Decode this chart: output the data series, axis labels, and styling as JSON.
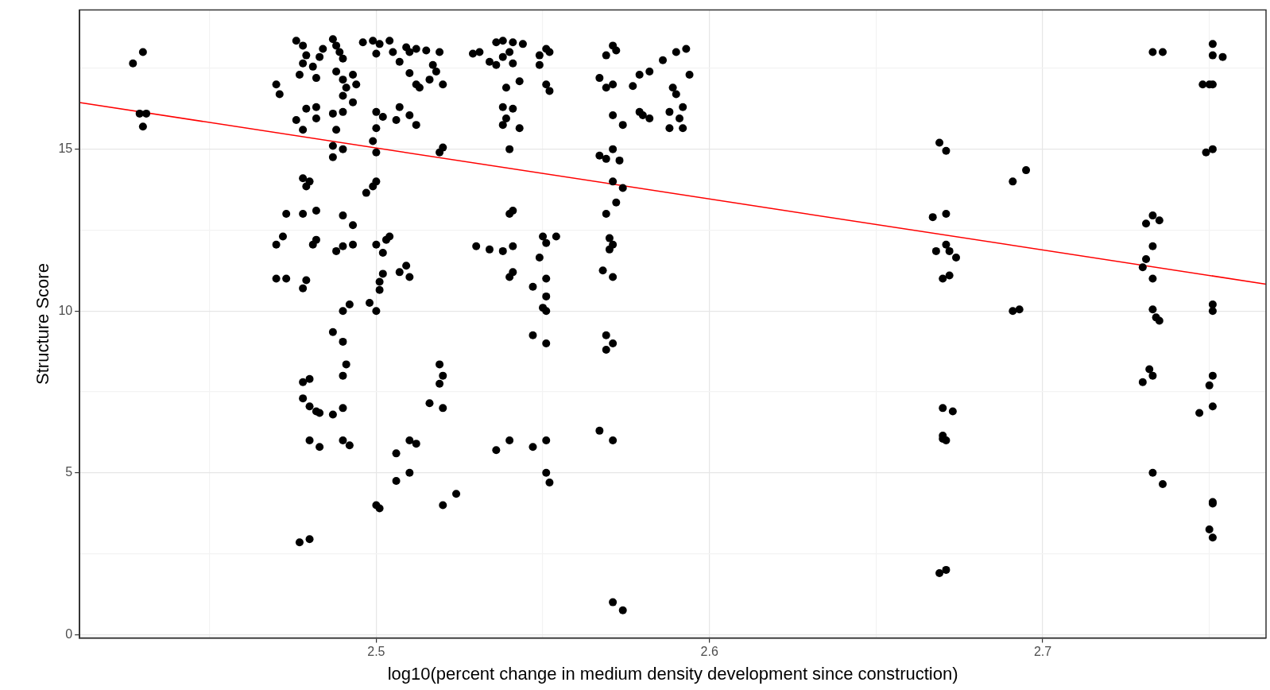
{
  "chart_data": {
    "type": "scatter",
    "xlabel": "log10(percent change in medium density development since construction)",
    "ylabel": "Structure Score",
    "xlim": [
      2.411,
      2.767
    ],
    "ylim": [
      -0.1,
      19.3
    ],
    "xticks": [
      {
        "value": 2.45,
        "label": null
      },
      2.5,
      {
        "value": 2.55,
        "label": null
      },
      2.6,
      {
        "value": 2.65,
        "label": null
      },
      2.7,
      {
        "value": 2.75,
        "label": null
      }
    ],
    "yticks": [
      0,
      {
        "value": 2.5,
        "label": null
      },
      5,
      {
        "value": 7.5,
        "label": null
      },
      10,
      {
        "value": 12.5,
        "label": null
      },
      15,
      {
        "value": 17.5,
        "label": null
      }
    ],
    "grid": true,
    "legend": false,
    "series": [
      {
        "color": "#000000",
        "marker": "circle",
        "x": [
          2.427,
          2.43,
          2.429,
          2.431,
          2.43,
          2.47,
          2.471,
          2.476,
          2.478,
          2.479,
          2.478,
          2.477,
          2.481,
          2.482,
          2.483,
          2.484,
          2.487,
          2.488,
          2.489,
          2.49,
          2.488,
          2.49,
          2.491,
          2.493,
          2.494,
          2.49,
          2.493,
          2.476,
          2.479,
          2.482,
          2.478,
          2.482,
          2.487,
          2.488,
          2.49,
          2.487,
          2.487,
          2.49,
          2.478,
          2.48,
          2.479,
          2.473,
          2.478,
          2.482,
          2.49,
          2.493,
          2.47,
          2.472,
          2.481,
          2.482,
          2.488,
          2.49,
          2.493,
          2.47,
          2.473,
          2.479,
          2.478,
          2.49,
          2.492,
          2.487,
          2.49,
          2.491,
          2.49,
          2.478,
          2.48,
          2.478,
          2.48,
          2.482,
          2.483,
          2.487,
          2.49,
          2.48,
          2.483,
          2.49,
          2.492,
          2.477,
          2.48,
          2.496,
          2.499,
          2.501,
          2.504,
          2.5,
          2.505,
          2.509,
          2.51,
          2.512,
          2.507,
          2.51,
          2.512,
          2.513,
          2.516,
          2.517,
          2.519,
          2.518,
          2.52,
          2.515,
          2.5,
          2.502,
          2.506,
          2.51,
          2.507,
          2.512,
          2.5,
          2.499,
          2.5,
          2.519,
          2.52,
          2.5,
          2.499,
          2.497,
          2.5,
          2.502,
          2.504,
          2.503,
          2.502,
          2.501,
          2.501,
          2.509,
          2.507,
          2.51,
          2.498,
          2.5,
          2.5,
          2.501,
          2.506,
          2.51,
          2.512,
          2.506,
          2.51,
          2.519,
          2.52,
          2.519,
          2.516,
          2.52,
          2.52,
          2.524,
          2.529,
          2.531,
          2.534,
          2.536,
          2.538,
          2.541,
          2.544,
          2.54,
          2.538,
          2.536,
          2.541,
          2.543,
          2.539,
          2.538,
          2.541,
          2.539,
          2.538,
          2.543,
          2.54,
          2.541,
          2.54,
          2.53,
          2.534,
          2.538,
          2.541,
          2.541,
          2.54,
          2.536,
          2.54,
          2.549,
          2.551,
          2.552,
          2.549,
          2.551,
          2.552,
          2.55,
          2.551,
          2.554,
          2.549,
          2.551,
          2.547,
          2.551,
          2.55,
          2.551,
          2.547,
          2.551,
          2.547,
          2.551,
          2.551,
          2.552,
          2.567,
          2.569,
          2.571,
          2.569,
          2.571,
          2.572,
          2.574,
          2.571,
          2.567,
          2.569,
          2.571,
          2.573,
          2.571,
          2.574,
          2.572,
          2.569,
          2.57,
          2.57,
          2.571,
          2.568,
          2.571,
          2.569,
          2.569,
          2.571,
          2.567,
          2.571,
          2.571,
          2.574,
          2.577,
          2.579,
          2.582,
          2.579,
          2.58,
          2.582,
          2.586,
          2.59,
          2.593,
          2.589,
          2.59,
          2.588,
          2.591,
          2.592,
          2.594,
          2.592,
          2.588,
          2.669,
          2.671,
          2.667,
          2.671,
          2.668,
          2.671,
          2.672,
          2.674,
          2.672,
          2.67,
          2.67,
          2.673,
          2.67,
          2.671,
          2.67,
          2.669,
          2.671,
          2.691,
          2.695,
          2.691,
          2.693,
          2.733,
          2.736,
          2.731,
          2.733,
          2.735,
          2.733,
          2.731,
          2.73,
          2.733,
          2.733,
          2.734,
          2.735,
          2.732,
          2.733,
          2.73,
          2.733,
          2.736,
          2.751,
          2.751,
          2.754,
          2.748,
          2.75,
          2.751,
          2.749,
          2.751,
          2.751,
          2.751,
          2.751,
          2.75,
          2.747,
          2.751,
          2.751,
          2.751,
          2.75,
          2.751
        ],
        "values": [
          17.65,
          18.0,
          16.1,
          16.1,
          15.7,
          17.0,
          16.7,
          18.35,
          18.2,
          17.9,
          17.65,
          17.3,
          17.55,
          17.2,
          17.85,
          18.1,
          18.4,
          18.2,
          18.0,
          17.8,
          17.4,
          17.15,
          16.9,
          17.3,
          17.0,
          16.65,
          16.45,
          15.9,
          16.25,
          16.3,
          15.6,
          15.95,
          16.1,
          15.6,
          16.15,
          15.1,
          14.75,
          15.0,
          14.1,
          14.0,
          13.85,
          13.0,
          13.0,
          13.1,
          12.95,
          12.65,
          12.05,
          12.3,
          12.05,
          12.2,
          11.85,
          12.0,
          12.05,
          11.0,
          11.0,
          10.95,
          10.7,
          10.0,
          10.2,
          9.35,
          9.05,
          8.35,
          8.0,
          7.8,
          7.9,
          7.3,
          7.05,
          6.9,
          6.85,
          6.8,
          7.0,
          6.0,
          5.8,
          6.0,
          5.85,
          2.85,
          2.95,
          18.3,
          18.35,
          18.25,
          18.35,
          17.95,
          18.0,
          18.15,
          18.0,
          18.1,
          17.7,
          17.35,
          17.0,
          16.9,
          17.15,
          17.6,
          18.0,
          17.4,
          17.0,
          18.05,
          16.15,
          16.0,
          15.9,
          16.05,
          16.3,
          15.75,
          15.65,
          15.25,
          14.9,
          14.9,
          15.05,
          14.0,
          13.85,
          13.65,
          12.05,
          11.8,
          12.3,
          12.2,
          11.15,
          10.9,
          10.65,
          11.4,
          11.2,
          11.05,
          10.25,
          10.0,
          4.0,
          3.9,
          5.6,
          6.0,
          5.9,
          4.75,
          5.0,
          8.35,
          8.0,
          7.75,
          7.15,
          7.0,
          4.0,
          4.35,
          17.95,
          18.0,
          17.7,
          18.3,
          18.35,
          18.3,
          18.25,
          18.0,
          17.85,
          17.6,
          17.65,
          17.1,
          16.9,
          16.3,
          16.25,
          15.95,
          15.75,
          15.65,
          15.0,
          13.1,
          13.0,
          12.0,
          11.9,
          11.85,
          12.0,
          11.2,
          11.05,
          5.7,
          6.0,
          17.9,
          18.1,
          18.0,
          17.6,
          17.0,
          16.8,
          12.3,
          12.1,
          12.3,
          11.65,
          11.0,
          10.75,
          10.45,
          10.1,
          10.0,
          9.25,
          9.0,
          5.8,
          6.0,
          5.0,
          4.7,
          17.2,
          16.9,
          17.0,
          17.9,
          18.2,
          18.05,
          15.75,
          16.05,
          14.8,
          14.7,
          15.0,
          14.65,
          14.0,
          13.8,
          13.35,
          13.0,
          12.25,
          11.9,
          12.05,
          11.25,
          11.05,
          9.25,
          8.8,
          9.0,
          6.3,
          6.0,
          1.0,
          0.75,
          16.95,
          17.3,
          17.4,
          16.15,
          16.05,
          15.95,
          17.75,
          18.0,
          18.1,
          16.9,
          16.7,
          15.65,
          15.95,
          16.3,
          17.3,
          15.65,
          16.15,
          15.2,
          14.95,
          12.9,
          13.0,
          11.85,
          12.05,
          11.85,
          11.65,
          11.1,
          11.0,
          7.0,
          6.9,
          6.15,
          6.0,
          6.05,
          1.9,
          2.0,
          14.0,
          14.35,
          10.0,
          10.05,
          18.0,
          18.0,
          12.7,
          12.95,
          12.8,
          12.0,
          11.6,
          11.35,
          11.0,
          10.05,
          9.8,
          9.7,
          8.2,
          8.0,
          7.8,
          5.0,
          4.65,
          18.25,
          17.9,
          17.85,
          17.0,
          17.0,
          17.0,
          14.9,
          15.0,
          10.2,
          10.0,
          8.0,
          7.7,
          6.85,
          7.05,
          4.05,
          4.1,
          3.25,
          3.0
        ]
      },
      {
        "type": "line",
        "marker": "none",
        "color": "#ff0000",
        "x": [
          2.411,
          2.767
        ],
        "values": [
          16.44,
          10.83
        ]
      }
    ]
  }
}
